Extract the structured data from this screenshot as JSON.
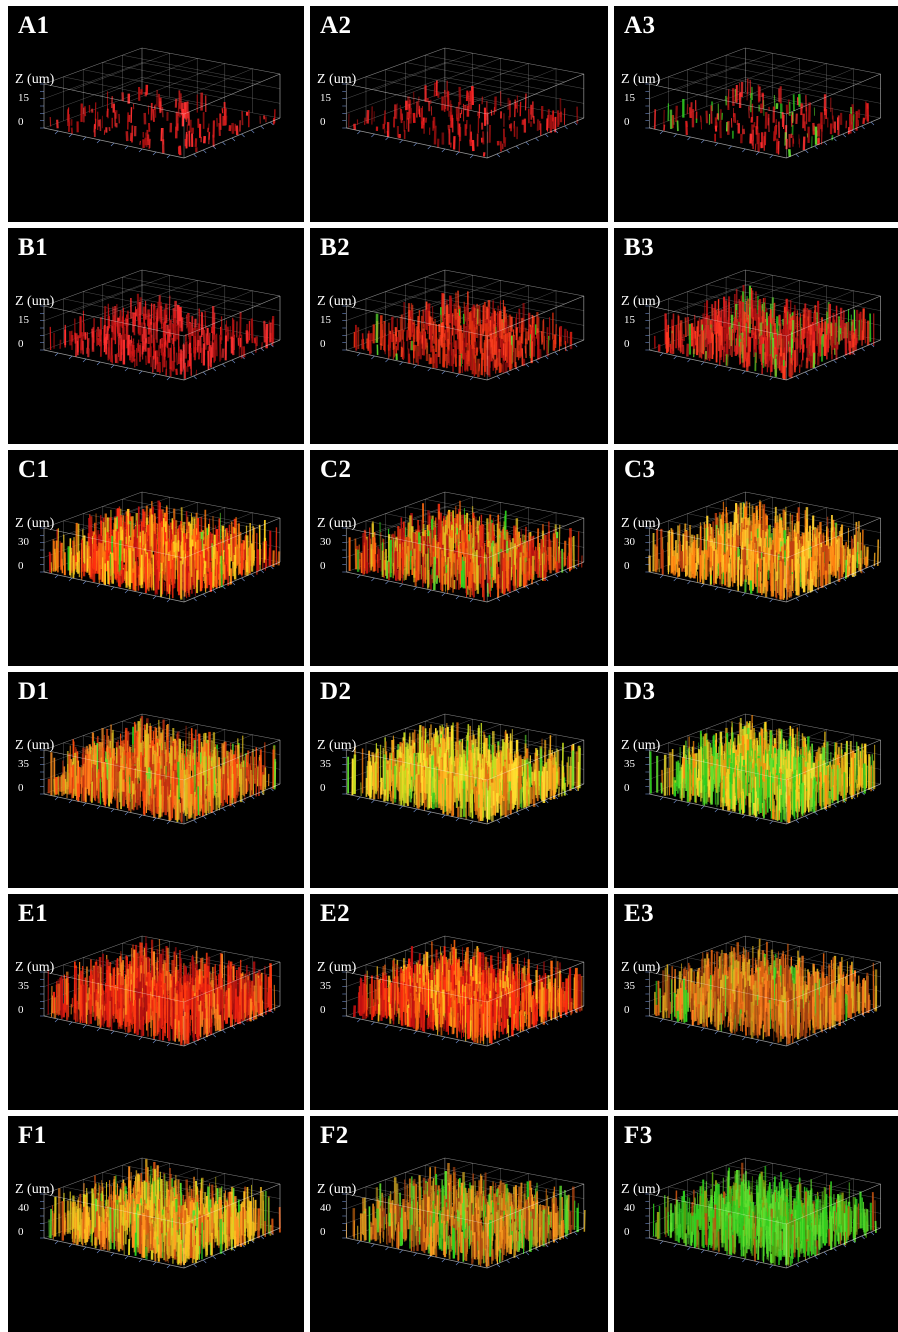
{
  "axis_title": "Z (um)",
  "panels": [
    {
      "label": "A1",
      "z_max": "15",
      "z_min": "0",
      "density": 0.1,
      "colors": [
        "#b01010",
        "#e02020",
        "#ff3030"
      ],
      "green": 0.0
    },
    {
      "label": "A2",
      "z_max": "15",
      "z_min": "0",
      "density": 0.12,
      "colors": [
        "#a00f0f",
        "#d81818",
        "#ff2a2a"
      ],
      "green": 0.0
    },
    {
      "label": "A3",
      "z_max": "15",
      "z_min": "0",
      "density": 0.14,
      "colors": [
        "#b01010",
        "#e02020",
        "#ff3030"
      ],
      "green": 0.18
    },
    {
      "label": "B1",
      "z_max": "15",
      "z_min": "0",
      "density": 0.35,
      "colors": [
        "#a00f0f",
        "#d81818",
        "#ff3030"
      ],
      "green": 0.0
    },
    {
      "label": "B2",
      "z_max": "15",
      "z_min": "0",
      "density": 0.45,
      "colors": [
        "#b01010",
        "#e03010",
        "#ff4020"
      ],
      "green": 0.04
    },
    {
      "label": "B3",
      "z_max": "15",
      "z_min": "0",
      "density": 0.55,
      "colors": [
        "#b01010",
        "#e02020",
        "#ff3a20"
      ],
      "green": 0.16
    },
    {
      "label": "C1",
      "z_max": "30",
      "z_min": "0",
      "density": 0.85,
      "colors": [
        "#c01010",
        "#ff3010",
        "#ff7a10",
        "#ffd020"
      ],
      "green": 0.03
    },
    {
      "label": "C2",
      "z_max": "30",
      "z_min": "0",
      "density": 0.8,
      "colors": [
        "#b01010",
        "#e83010",
        "#ff6a10",
        "#e0c020"
      ],
      "green": 0.08
    },
    {
      "label": "C3",
      "z_max": "30",
      "z_min": "0",
      "density": 0.85,
      "colors": [
        "#c04010",
        "#ff8010",
        "#ffb020",
        "#ffd030"
      ],
      "green": 0.05
    },
    {
      "label": "D1",
      "z_max": "35",
      "z_min": "0",
      "density": 0.95,
      "colors": [
        "#c03010",
        "#ff5010",
        "#ff9020",
        "#e0c020"
      ],
      "green": 0.06
    },
    {
      "label": "D2",
      "z_max": "35",
      "z_min": "0",
      "density": 0.95,
      "colors": [
        "#e07010",
        "#ffb020",
        "#ffe030",
        "#c8e020"
      ],
      "green": 0.1
    },
    {
      "label": "D3",
      "z_max": "35",
      "z_min": "0",
      "density": 0.95,
      "colors": [
        "#d0a010",
        "#ffd020",
        "#f0e030",
        "#ff9010"
      ],
      "green": 0.4
    },
    {
      "label": "E1",
      "z_max": "35",
      "z_min": "0",
      "density": 0.95,
      "colors": [
        "#b01010",
        "#e82010",
        "#ff3a10",
        "#ff8a20"
      ],
      "green": 0.0
    },
    {
      "label": "E2",
      "z_max": "35",
      "z_min": "0",
      "density": 0.95,
      "colors": [
        "#c01010",
        "#ff2a10",
        "#ff6a10",
        "#ffc020"
      ],
      "green": 0.0
    },
    {
      "label": "E3",
      "z_max": "35",
      "z_min": "0",
      "density": 0.95,
      "colors": [
        "#a04010",
        "#d86010",
        "#ff8020",
        "#e0b020"
      ],
      "green": 0.06
    },
    {
      "label": "F1",
      "z_max": "40",
      "z_min": "0",
      "density": 0.9,
      "colors": [
        "#d05010",
        "#ff9020",
        "#ffc020",
        "#e0d020"
      ],
      "green": 0.15
    },
    {
      "label": "F2",
      "z_max": "40",
      "z_min": "0",
      "density": 0.85,
      "colors": [
        "#a04010",
        "#d87010",
        "#ffa020",
        "#c8a020"
      ],
      "green": 0.22
    },
    {
      "label": "F3",
      "z_max": "40",
      "z_min": "0",
      "density": 0.85,
      "colors": [
        "#50a010",
        "#30c020",
        "#90a010",
        "#c05010"
      ],
      "green": 0.55
    }
  ]
}
